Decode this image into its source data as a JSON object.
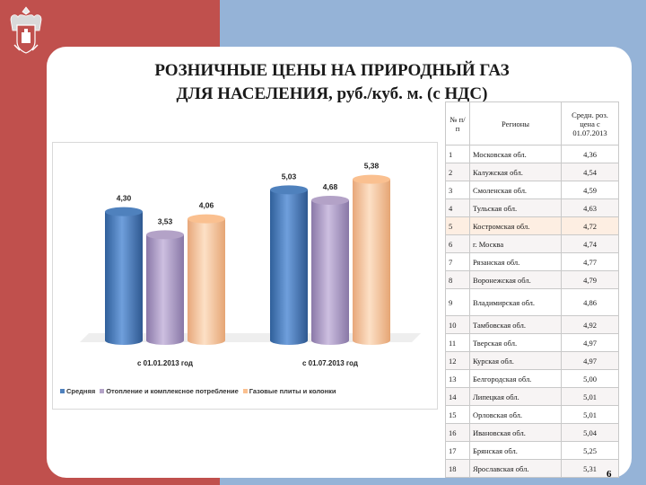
{
  "slide": {
    "title_line1": "РОЗНИЧНЫЕ ЦЕНЫ НА ПРИРОДНЫЙ ГАЗ",
    "title_line2": "ДЛЯ НАСЕЛЕНИЯ, руб./куб. м. (с НДС)",
    "page_number": "6",
    "colors": {
      "left_panel": "#c0504d",
      "right_panel": "#95b3d7"
    },
    "emblem_icon": "coat-of-arms-icon"
  },
  "chart_data": {
    "type": "bar",
    "categories": [
      "с 01.01.2013 год",
      "с 01.07.2013 год"
    ],
    "series": [
      {
        "name": "Средняя",
        "values": [
          4.3,
          5.03
        ],
        "labels": [
          "4,30",
          "5,03"
        ],
        "color": "#4f81bd"
      },
      {
        "name": "Отопление и комплексное потребление",
        "values": [
          3.53,
          4.68
        ],
        "labels": [
          "3,53",
          "4,68"
        ],
        "color": "#b3a2c7"
      },
      {
        "name": "Газовые плиты и колонки",
        "values": [
          4.06,
          5.38
        ],
        "labels": [
          "4,06",
          "5,38"
        ],
        "color": "#fac090"
      }
    ],
    "ylim": [
      0,
      6
    ],
    "grid": false,
    "legend_position": "bottom"
  },
  "table": {
    "headers": [
      "№ п/п",
      "Регионы",
      "Средн. роз. цена с 01.07.2013"
    ],
    "rows": [
      [
        "1",
        "Московская обл.",
        "4,36"
      ],
      [
        "2",
        "Калужская обл.",
        "4,54"
      ],
      [
        "3",
        "Смоленская обл.",
        "4,59"
      ],
      [
        "4",
        "Тульская обл.",
        "4,63"
      ],
      [
        "5",
        "Костромская обл.",
        "4,72"
      ],
      [
        "6",
        "г. Москва",
        "4,74"
      ],
      [
        "7",
        "Рязанская обл.",
        "4,77"
      ],
      [
        "8",
        "Воронежская обл.",
        "4,79"
      ],
      [
        "9",
        "Владимирская обл.",
        "4,86"
      ],
      [
        "10",
        "Тамбовская обл.",
        "4,92"
      ],
      [
        "11",
        "Тверская обл.",
        "4,97"
      ],
      [
        "12",
        "Курская обл.",
        "4,97"
      ],
      [
        "13",
        "Белгородская обл.",
        "5,00"
      ],
      [
        "14",
        "Липецкая обл.",
        "5,01"
      ],
      [
        "15",
        "Орловская обл.",
        "5,01"
      ],
      [
        "16",
        "Ивановская обл.",
        "5,04"
      ],
      [
        "17",
        "Брянская обл.",
        "5,25"
      ],
      [
        "18",
        "Ярославская обл.",
        "5,31"
      ]
    ],
    "highlight_row": 5
  }
}
